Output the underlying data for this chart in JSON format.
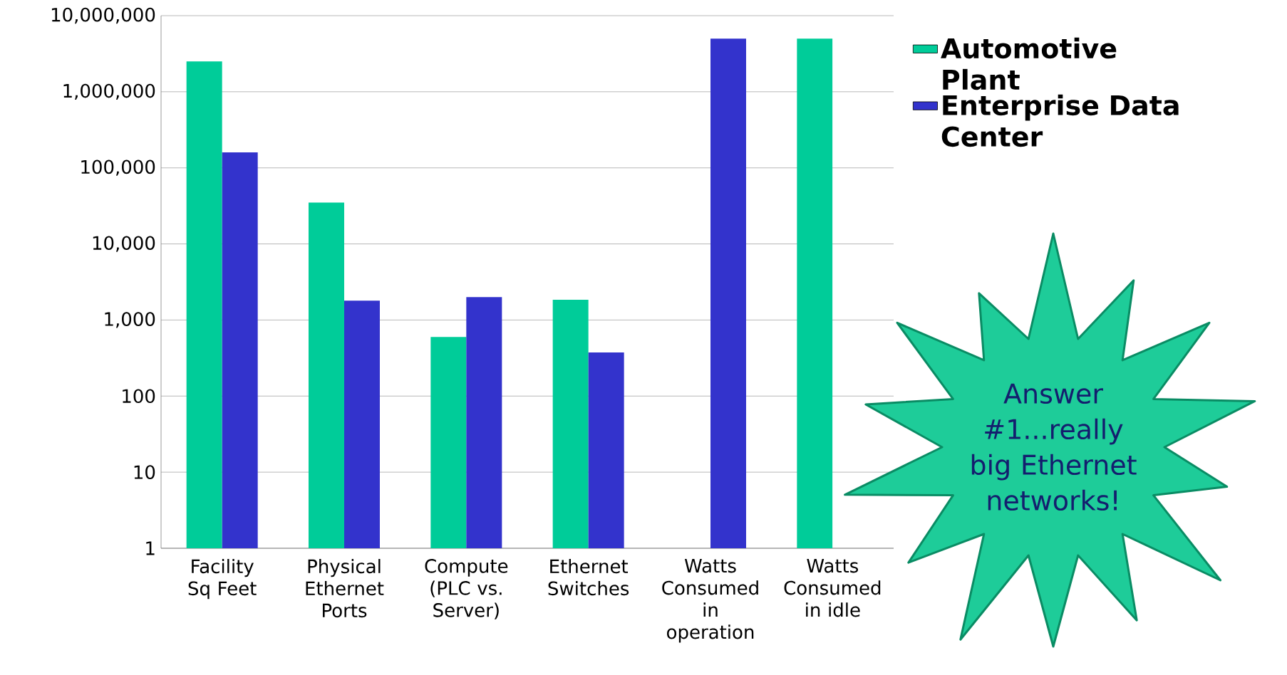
{
  "chart_data": {
    "type": "bar",
    "categories": [
      "Facility Sq Feet",
      "Physical Ethernet Ports",
      "Compute (PLC vs. Server)",
      "Ethernet Switches",
      "Watts Consumed in operation",
      "Watts Consumed in idle"
    ],
    "series": [
      {
        "name": "Automotive Plant",
        "color": "#00cc99",
        "values": [
          2500000,
          35000,
          600,
          1850,
          null,
          5000000
        ]
      },
      {
        "name": "Enterprise Data Center",
        "color": "#3333cc",
        "values": [
          160000,
          1800,
          2000,
          375,
          5000000,
          null
        ]
      }
    ],
    "log": "y",
    "ylim": [
      1,
      10000000
    ],
    "yticks": [
      {
        "value": 1,
        "label": "1"
      },
      {
        "value": 10,
        "label": "10"
      },
      {
        "value": 100,
        "label": "100"
      },
      {
        "value": 1000,
        "label": "1,000"
      },
      {
        "value": 10000,
        "label": "10,000"
      },
      {
        "value": 100000,
        "label": "100,000"
      },
      {
        "value": 1000000,
        "label": "1,000,000"
      },
      {
        "value": 10000000,
        "label": "10,000,000"
      }
    ],
    "grid": "y",
    "legend": "right",
    "annotations": [
      "Answer #1...really big Ethernet networks!"
    ]
  }
}
